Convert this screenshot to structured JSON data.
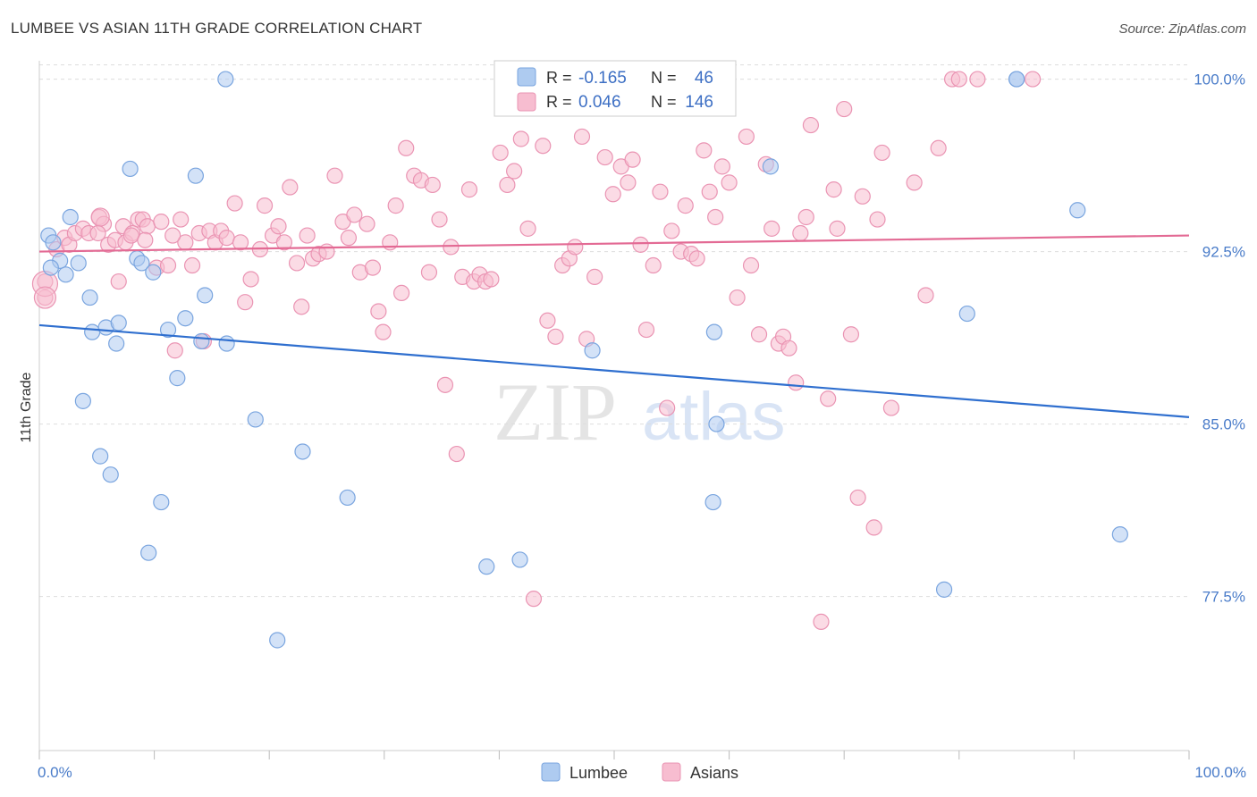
{
  "title": "LUMBEE VS ASIAN 11TH GRADE CORRELATION CHART",
  "source": "Source: ZipAtlas.com",
  "watermark": {
    "zip": "ZIP",
    "atlas": "atlas"
  },
  "colors": {
    "lumbee_fill": "#aecbf0",
    "lumbee_stroke": "#7aa5df",
    "lumbee_line": "#2f6fcf",
    "asian_fill": "#f7bdd0",
    "asian_stroke": "#ea94b3",
    "asian_line": "#e36a94",
    "tick_text": "#4a7cc9",
    "grid": "#dddddd"
  },
  "legend": {
    "r_label": "R =",
    "n_label": "N =",
    "rows": [
      {
        "series": "Lumbee",
        "r": "-0.165",
        "n": "46"
      },
      {
        "series": "Asians",
        "r": "0.046",
        "n": "146"
      }
    ]
  },
  "chart_data": {
    "type": "scatter",
    "title": "LUMBEE VS ASIAN 11TH GRADE CORRELATION CHART",
    "xlabel": "",
    "ylabel": "11th Grade",
    "xlim": [
      0,
      100
    ],
    "ylim": [
      70.8,
      100.8
    ],
    "x_tick_labels": [
      "0.0%",
      "100.0%"
    ],
    "y_ticks": [
      77.5,
      85.0,
      92.5,
      100.0
    ],
    "y_tick_labels": [
      "77.5%",
      "85.0%",
      "92.5%",
      "100.0%"
    ],
    "grid": true,
    "legend_position": "top-center",
    "series": [
      {
        "name": "Lumbee",
        "r": -0.165,
        "n": 46,
        "trend": {
          "x": [
            0,
            100
          ],
          "y": [
            89.3,
            85.3
          ]
        },
        "points": [
          [
            0.8,
            93.2
          ],
          [
            1.2,
            92.9
          ],
          [
            1.8,
            92.1
          ],
          [
            2.7,
            94.0
          ],
          [
            3.4,
            92.0
          ],
          [
            2.3,
            91.5
          ],
          [
            4.4,
            90.5
          ],
          [
            4.6,
            89.0
          ],
          [
            5.8,
            89.2
          ],
          [
            6.9,
            89.4
          ],
          [
            6.7,
            88.5
          ],
          [
            8.5,
            92.2
          ],
          [
            8.9,
            92.0
          ],
          [
            9.9,
            91.6
          ],
          [
            11.2,
            89.1
          ],
          [
            12.7,
            89.6
          ],
          [
            14.4,
            90.6
          ],
          [
            14.1,
            88.6
          ],
          [
            16.3,
            88.5
          ],
          [
            12.0,
            87.0
          ],
          [
            3.8,
            86.0
          ],
          [
            18.8,
            85.2
          ],
          [
            5.3,
            83.6
          ],
          [
            6.2,
            82.8
          ],
          [
            22.9,
            83.8
          ],
          [
            10.6,
            81.6
          ],
          [
            26.8,
            81.8
          ],
          [
            9.5,
            79.4
          ],
          [
            38.9,
            78.8
          ],
          [
            41.8,
            79.1
          ],
          [
            20.7,
            75.6
          ],
          [
            16.2,
            100.0
          ],
          [
            7.9,
            96.1
          ],
          [
            13.6,
            95.8
          ],
          [
            48.1,
            88.2
          ],
          [
            58.7,
            89.0
          ],
          [
            63.6,
            96.2
          ],
          [
            58.9,
            85.0
          ],
          [
            80.7,
            89.8
          ],
          [
            58.6,
            81.6
          ],
          [
            78.7,
            77.8
          ],
          [
            85.0,
            100.0
          ],
          [
            85.0,
            100.0
          ],
          [
            90.3,
            94.3
          ],
          [
            94.0,
            80.2
          ],
          [
            1.0,
            91.8
          ]
        ]
      },
      {
        "name": "Asians",
        "r": 0.046,
        "n": 146,
        "trend": {
          "x": [
            0,
            100
          ],
          "y": [
            92.5,
            93.2
          ]
        },
        "points": [
          [
            0.5,
            91.2
          ],
          [
            0.5,
            90.5
          ],
          [
            1.5,
            92.6
          ],
          [
            2.2,
            93.1
          ],
          [
            2.6,
            92.8
          ],
          [
            3.1,
            93.3
          ],
          [
            3.8,
            93.5
          ],
          [
            4.3,
            93.3
          ],
          [
            5.2,
            94.0
          ],
          [
            5.6,
            93.7
          ],
          [
            6.0,
            92.8
          ],
          [
            6.6,
            93.0
          ],
          [
            6.9,
            91.2
          ],
          [
            7.3,
            93.6
          ],
          [
            7.5,
            92.9
          ],
          [
            8.1,
            93.3
          ],
          [
            8.6,
            93.9
          ],
          [
            9.0,
            93.9
          ],
          [
            9.4,
            93.6
          ],
          [
            10.2,
            91.8
          ],
          [
            10.6,
            93.8
          ],
          [
            11.2,
            91.9
          ],
          [
            11.8,
            88.2
          ],
          [
            12.3,
            93.9
          ],
          [
            12.7,
            92.9
          ],
          [
            13.3,
            91.9
          ],
          [
            13.9,
            93.3
          ],
          [
            14.3,
            88.6
          ],
          [
            14.8,
            93.4
          ],
          [
            15.3,
            92.9
          ],
          [
            15.8,
            93.4
          ],
          [
            16.3,
            93.1
          ],
          [
            17.0,
            94.6
          ],
          [
            17.5,
            92.9
          ],
          [
            17.9,
            90.3
          ],
          [
            18.4,
            91.3
          ],
          [
            19.2,
            92.6
          ],
          [
            19.6,
            94.5
          ],
          [
            20.3,
            93.2
          ],
          [
            20.8,
            93.6
          ],
          [
            21.3,
            92.9
          ],
          [
            21.8,
            95.3
          ],
          [
            22.4,
            92.0
          ],
          [
            22.8,
            90.1
          ],
          [
            23.3,
            93.2
          ],
          [
            23.8,
            92.2
          ],
          [
            24.3,
            92.4
          ],
          [
            25.0,
            92.5
          ],
          [
            25.7,
            95.8
          ],
          [
            26.4,
            93.8
          ],
          [
            26.9,
            93.1
          ],
          [
            27.4,
            94.1
          ],
          [
            27.9,
            91.6
          ],
          [
            28.5,
            93.7
          ],
          [
            29.0,
            91.8
          ],
          [
            29.5,
            89.9
          ],
          [
            29.9,
            89.0
          ],
          [
            30.5,
            92.9
          ],
          [
            31.0,
            94.5
          ],
          [
            31.5,
            90.7
          ],
          [
            31.9,
            97.0
          ],
          [
            32.6,
            95.8
          ],
          [
            33.2,
            95.6
          ],
          [
            33.9,
            91.6
          ],
          [
            34.2,
            95.4
          ],
          [
            34.8,
            93.9
          ],
          [
            35.3,
            86.7
          ],
          [
            35.8,
            92.7
          ],
          [
            36.3,
            83.7
          ],
          [
            36.8,
            91.4
          ],
          [
            37.4,
            95.2
          ],
          [
            37.8,
            91.2
          ],
          [
            38.3,
            91.5
          ],
          [
            38.8,
            91.2
          ],
          [
            39.3,
            91.3
          ],
          [
            40.1,
            96.8
          ],
          [
            40.7,
            95.4
          ],
          [
            41.3,
            96.0
          ],
          [
            41.9,
            97.4
          ],
          [
            42.5,
            93.5
          ],
          [
            43.0,
            77.4
          ],
          [
            43.8,
            97.1
          ],
          [
            44.2,
            89.5
          ],
          [
            44.9,
            88.8
          ],
          [
            45.5,
            91.9
          ],
          [
            46.1,
            92.2
          ],
          [
            46.6,
            92.7
          ],
          [
            47.2,
            97.5
          ],
          [
            47.6,
            88.7
          ],
          [
            48.3,
            91.4
          ],
          [
            49.2,
            96.6
          ],
          [
            49.9,
            95.0
          ],
          [
            50.6,
            96.2
          ],
          [
            51.2,
            95.5
          ],
          [
            51.6,
            96.5
          ],
          [
            52.3,
            92.8
          ],
          [
            52.8,
            89.1
          ],
          [
            53.4,
            91.9
          ],
          [
            54.0,
            95.1
          ],
          [
            54.6,
            85.7
          ],
          [
            55.0,
            93.4
          ],
          [
            55.8,
            92.5
          ],
          [
            56.2,
            94.5
          ],
          [
            56.7,
            92.4
          ],
          [
            57.2,
            92.2
          ],
          [
            57.8,
            96.9
          ],
          [
            58.3,
            95.1
          ],
          [
            58.8,
            94.0
          ],
          [
            59.4,
            96.2
          ],
          [
            60.0,
            95.5
          ],
          [
            60.7,
            90.5
          ],
          [
            61.5,
            97.5
          ],
          [
            61.9,
            91.9
          ],
          [
            62.6,
            88.9
          ],
          [
            63.2,
            96.3
          ],
          [
            63.7,
            93.5
          ],
          [
            64.3,
            88.5
          ],
          [
            64.7,
            88.8
          ],
          [
            65.2,
            88.3
          ],
          [
            65.8,
            86.8
          ],
          [
            66.2,
            93.3
          ],
          [
            66.7,
            94.0
          ],
          [
            67.1,
            98.0
          ],
          [
            68.0,
            76.4
          ],
          [
            68.6,
            86.1
          ],
          [
            69.1,
            95.2
          ],
          [
            69.4,
            93.5
          ],
          [
            70.0,
            98.7
          ],
          [
            70.6,
            88.9
          ],
          [
            71.2,
            81.8
          ],
          [
            71.6,
            94.9
          ],
          [
            72.6,
            80.5
          ],
          [
            72.9,
            93.9
          ],
          [
            73.3,
            96.8
          ],
          [
            74.1,
            85.7
          ],
          [
            76.1,
            95.5
          ],
          [
            77.1,
            90.6
          ],
          [
            78.2,
            97.0
          ],
          [
            79.4,
            100.0
          ],
          [
            80.0,
            100.0
          ],
          [
            81.6,
            100.0
          ],
          [
            86.4,
            100.0
          ],
          [
            8.0,
            93.2
          ],
          [
            9.2,
            93.0
          ],
          [
            5.1,
            93.3
          ],
          [
            11.6,
            93.2
          ]
        ]
      }
    ]
  }
}
